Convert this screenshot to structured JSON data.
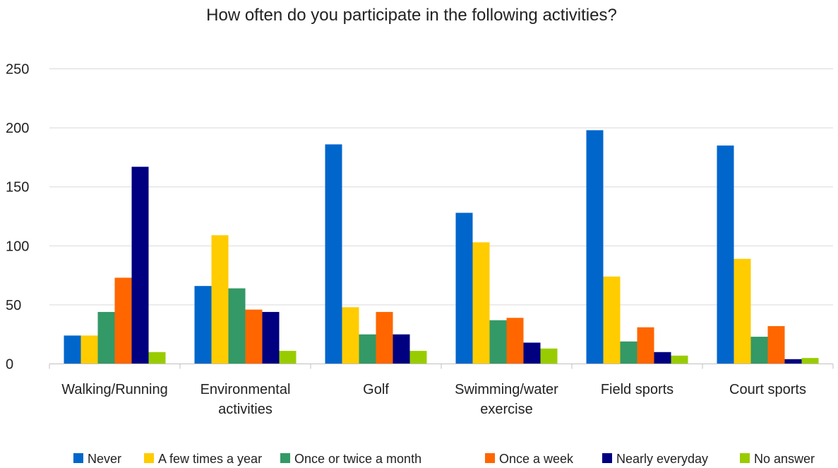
{
  "chart_data": {
    "type": "bar",
    "title": "How often do you participate in the following activities?",
    "categories": [
      [
        "Walking/Running"
      ],
      [
        "Environmental",
        "activities"
      ],
      [
        "Golf"
      ],
      [
        "Swimming/water",
        "exercise"
      ],
      [
        "Field sports"
      ],
      [
        "Court sports"
      ]
    ],
    "series": [
      {
        "name": "Never",
        "color": "#0066CC",
        "values": [
          24,
          66,
          186,
          128,
          198,
          185
        ]
      },
      {
        "name": "A few times a year",
        "color": "#FFCC00",
        "values": [
          24,
          109,
          48,
          103,
          74,
          89
        ]
      },
      {
        "name": "Once or twice a month",
        "color": "#339966",
        "values": [
          44,
          64,
          25,
          37,
          19,
          23
        ]
      },
      {
        "name": "Once a week",
        "color": "#FF6600",
        "values": [
          73,
          46,
          44,
          39,
          31,
          32
        ]
      },
      {
        "name": "Nearly everyday",
        "color": "#000080",
        "values": [
          167,
          44,
          25,
          18,
          10,
          4
        ]
      },
      {
        "name": "No answer",
        "color": "#99CC00",
        "values": [
          10,
          11,
          11,
          13,
          7,
          5
        ]
      }
    ],
    "yticks": [
      0,
      50,
      100,
      150,
      200,
      250
    ],
    "ylim": [
      0,
      250
    ],
    "xlabel": "",
    "ylabel": "",
    "grid": true,
    "legend_position": "bottom"
  }
}
